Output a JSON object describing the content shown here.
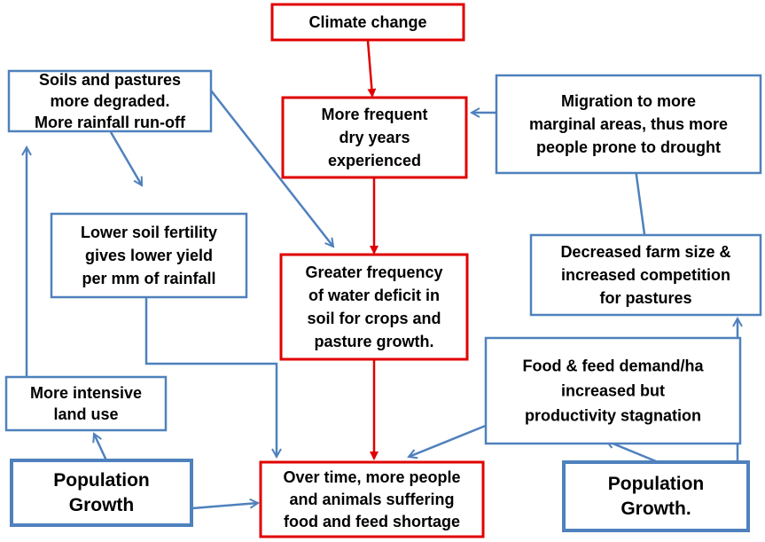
{
  "nodes": [
    {
      "lines": [
        "Climate change"
      ]
    },
    {
      "lines": [
        "More frequent",
        "dry years",
        "experienced"
      ]
    },
    {
      "lines": [
        "Greater frequency",
        "of water deficit in",
        "soil for crops and",
        "pasture growth."
      ]
    },
    {
      "lines": [
        "Over time, more people",
        "and animals suffering",
        "food and feed shortage"
      ]
    },
    {
      "lines": [
        "Soils and pastures",
        "more degraded.",
        "More rainfall run-off"
      ]
    },
    {
      "lines": [
        "Lower soil fertility",
        "gives lower yield",
        "per mm of rainfall"
      ]
    },
    {
      "lines": [
        "More intensive",
        "land use"
      ]
    },
    {
      "lines": [
        "Population",
        "Growth"
      ]
    },
    {
      "lines": [
        "Migration to more",
        "marginal areas, thus more",
        "people prone to drought"
      ]
    },
    {
      "lines": [
        "Decreased farm size &",
        "increased competition",
        "for pastures"
      ]
    },
    {
      "lines": [
        "Food & feed demand/ha",
        "increased  but",
        "productivity stagnation"
      ]
    },
    {
      "lines": [
        "Population",
        "Growth."
      ]
    }
  ]
}
